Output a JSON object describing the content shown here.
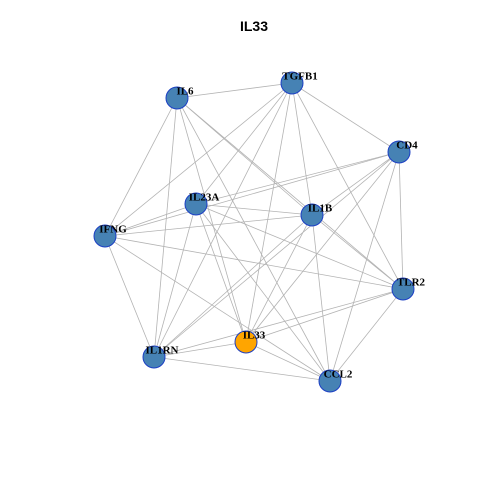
{
  "title": "IL33",
  "nodes": [
    {
      "label": "IL6",
      "color": "#4682b4"
    },
    {
      "label": "TGFB1",
      "color": "#4682b4"
    },
    {
      "label": "CD4",
      "color": "#4682b4"
    },
    {
      "label": "IL23A",
      "color": "#4682b4"
    },
    {
      "label": "IL1B",
      "color": "#4682b4"
    },
    {
      "label": "IFNG",
      "color": "#4682b4"
    },
    {
      "label": "TLR2",
      "color": "#4682b4"
    },
    {
      "label": "IL33",
      "color": "#ffa500"
    },
    {
      "label": "IL1RN",
      "color": "#4682b4"
    },
    {
      "label": "CCL2",
      "color": "#4682b4"
    }
  ],
  "edges": [
    [
      0,
      1
    ],
    [
      0,
      4
    ],
    [
      0,
      6
    ],
    [
      0,
      5
    ],
    [
      0,
      8
    ],
    [
      0,
      7
    ],
    [
      0,
      9
    ],
    [
      1,
      2
    ],
    [
      1,
      3
    ],
    [
      1,
      5
    ],
    [
      1,
      4
    ],
    [
      1,
      6
    ],
    [
      1,
      7
    ],
    [
      1,
      8
    ],
    [
      2,
      4
    ],
    [
      2,
      3
    ],
    [
      2,
      5
    ],
    [
      2,
      6
    ],
    [
      2,
      9
    ],
    [
      2,
      7
    ],
    [
      2,
      8
    ],
    [
      3,
      4
    ],
    [
      3,
      6
    ],
    [
      3,
      7
    ],
    [
      3,
      8
    ],
    [
      3,
      9
    ],
    [
      3,
      5
    ],
    [
      4,
      5
    ],
    [
      4,
      6
    ],
    [
      4,
      9
    ],
    [
      4,
      8
    ],
    [
      4,
      7
    ],
    [
      5,
      6
    ],
    [
      5,
      8
    ],
    [
      5,
      9
    ],
    [
      6,
      7
    ],
    [
      6,
      8
    ],
    [
      6,
      9
    ],
    [
      7,
      8
    ],
    [
      7,
      9
    ],
    [
      8,
      9
    ]
  ]
}
